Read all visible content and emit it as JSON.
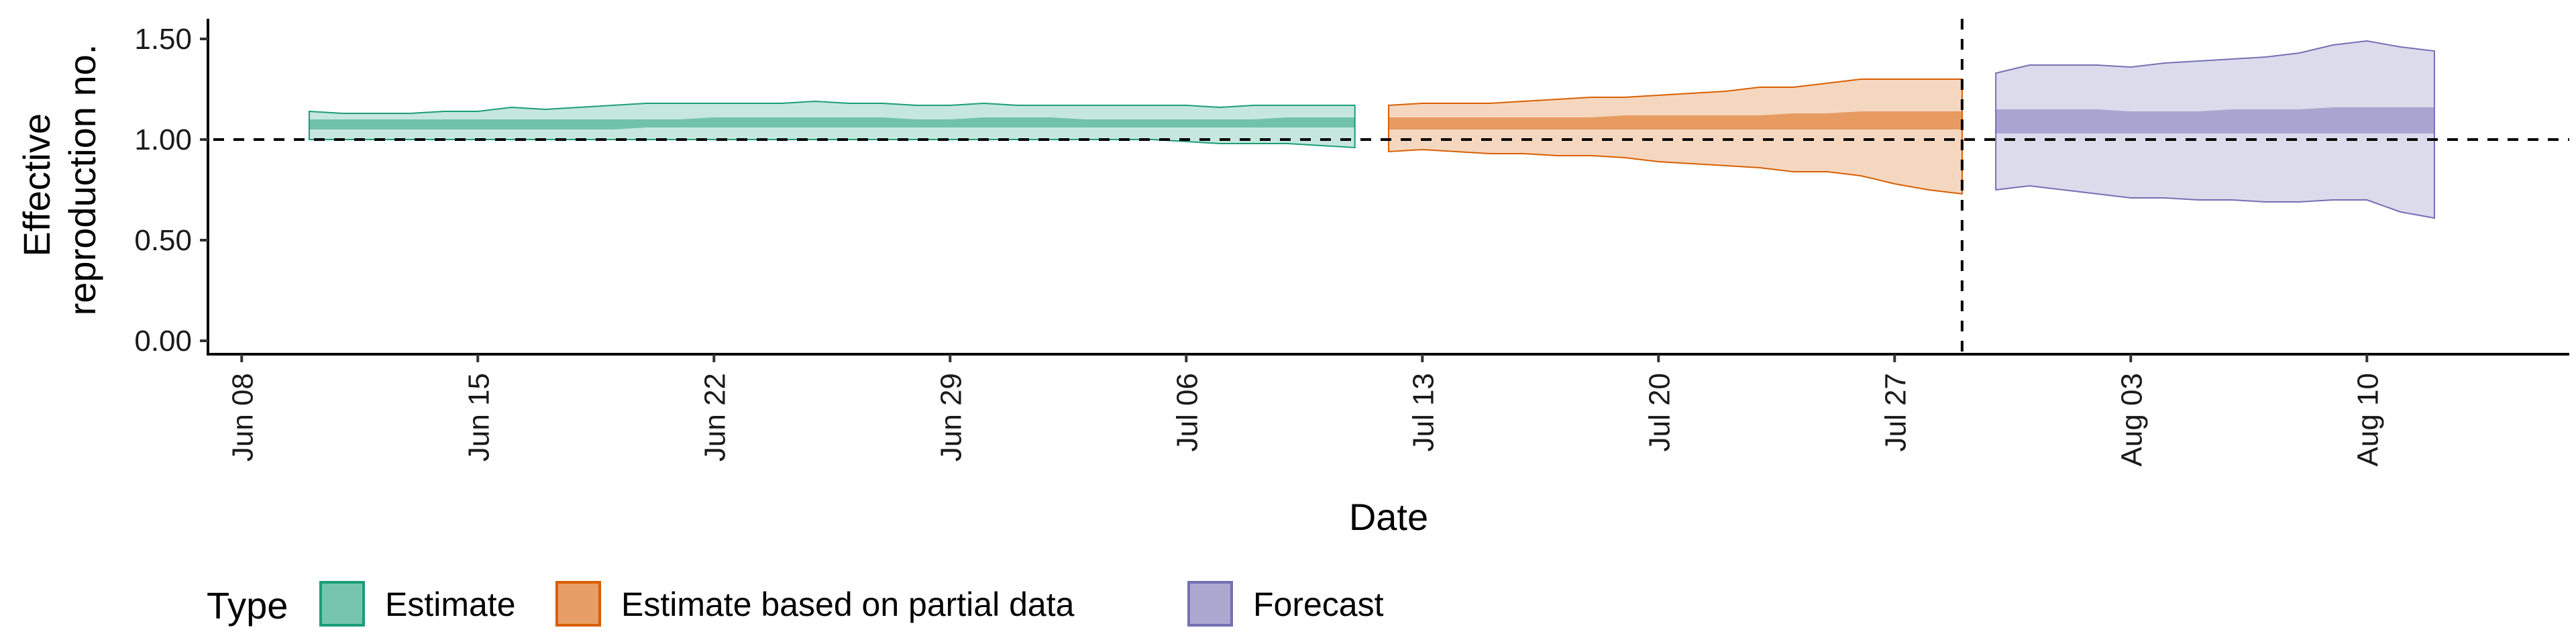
{
  "chart_data": {
    "type": "area",
    "title": "",
    "xlabel": "Date",
    "ylabel_lines": [
      "Effective",
      "reproduction no."
    ],
    "ylim": [
      0,
      1.6
    ],
    "yticks": [
      {
        "value": 0.0,
        "label": "0.00"
      },
      {
        "value": 0.5,
        "label": "0.50"
      },
      {
        "value": 1.0,
        "label": "1.00"
      },
      {
        "value": 1.5,
        "label": "1.50"
      }
    ],
    "xlim": [
      "2020-06-07",
      "2020-08-16"
    ],
    "xticks": [
      {
        "date": "2020-06-08",
        "label": "Jun 08"
      },
      {
        "date": "2020-06-15",
        "label": "Jun 15"
      },
      {
        "date": "2020-06-22",
        "label": "Jun 22"
      },
      {
        "date": "2020-06-29",
        "label": "Jun 29"
      },
      {
        "date": "2020-07-06",
        "label": "Jul 06"
      },
      {
        "date": "2020-07-13",
        "label": "Jul 13"
      },
      {
        "date": "2020-07-20",
        "label": "Jul 20"
      },
      {
        "date": "2020-07-27",
        "label": "Jul 27"
      },
      {
        "date": "2020-08-03",
        "label": "Aug 03"
      },
      {
        "date": "2020-08-10",
        "label": "Aug 10"
      }
    ],
    "reference_line_y": 1.0,
    "reference_line_x": "2020-07-29",
    "grid": false,
    "legend": {
      "title": "Type",
      "position": "bottom-left",
      "entries": [
        "Estimate",
        "Estimate based on partial data",
        "Forecast"
      ]
    },
    "series": [
      {
        "name": "Estimate",
        "fill": "#1b9e77",
        "x": [
          "2020-06-10",
          "2020-06-11",
          "2020-06-12",
          "2020-06-13",
          "2020-06-14",
          "2020-06-15",
          "2020-06-16",
          "2020-06-17",
          "2020-06-18",
          "2020-06-19",
          "2020-06-20",
          "2020-06-21",
          "2020-06-22",
          "2020-06-23",
          "2020-06-24",
          "2020-06-25",
          "2020-06-26",
          "2020-06-27",
          "2020-06-28",
          "2020-06-29",
          "2020-06-30",
          "2020-07-01",
          "2020-07-02",
          "2020-07-03",
          "2020-07-04",
          "2020-07-05",
          "2020-07-06",
          "2020-07-07",
          "2020-07-08",
          "2020-07-09",
          "2020-07-10",
          "2020-07-11"
        ],
        "upper90": [
          1.14,
          1.13,
          1.13,
          1.13,
          1.14,
          1.14,
          1.16,
          1.15,
          1.16,
          1.17,
          1.18,
          1.18,
          1.18,
          1.18,
          1.18,
          1.19,
          1.18,
          1.18,
          1.17,
          1.17,
          1.18,
          1.17,
          1.17,
          1.17,
          1.17,
          1.17,
          1.17,
          1.16,
          1.17,
          1.17,
          1.17,
          1.17
        ],
        "upper50": [
          1.1,
          1.1,
          1.1,
          1.1,
          1.1,
          1.1,
          1.1,
          1.1,
          1.1,
          1.1,
          1.1,
          1.1,
          1.11,
          1.11,
          1.11,
          1.11,
          1.11,
          1.11,
          1.1,
          1.1,
          1.11,
          1.11,
          1.11,
          1.1,
          1.1,
          1.1,
          1.1,
          1.1,
          1.1,
          1.11,
          1.11,
          1.11
        ],
        "lower50": [
          1.05,
          1.05,
          1.05,
          1.05,
          1.05,
          1.05,
          1.05,
          1.05,
          1.05,
          1.05,
          1.06,
          1.06,
          1.06,
          1.06,
          1.06,
          1.06,
          1.06,
          1.06,
          1.06,
          1.06,
          1.06,
          1.06,
          1.06,
          1.06,
          1.06,
          1.06,
          1.06,
          1.06,
          1.06,
          1.06,
          1.06,
          1.06
        ],
        "lower90": [
          1.0,
          1.0,
          1.0,
          1.0,
          1.0,
          1.0,
          1.0,
          1.0,
          1.0,
          1.0,
          1.0,
          1.0,
          1.0,
          1.0,
          1.0,
          1.0,
          1.0,
          1.0,
          1.0,
          1.0,
          1.0,
          1.0,
          1.0,
          1.0,
          1.0,
          1.0,
          0.99,
          0.98,
          0.98,
          0.98,
          0.97,
          0.96
        ]
      },
      {
        "name": "Estimate based on partial data",
        "fill": "#d95f02",
        "x": [
          "2020-07-12",
          "2020-07-13",
          "2020-07-14",
          "2020-07-15",
          "2020-07-16",
          "2020-07-17",
          "2020-07-18",
          "2020-07-19",
          "2020-07-20",
          "2020-07-21",
          "2020-07-22",
          "2020-07-23",
          "2020-07-24",
          "2020-07-25",
          "2020-07-26",
          "2020-07-27",
          "2020-07-28",
          "2020-07-29"
        ],
        "upper90": [
          1.17,
          1.18,
          1.18,
          1.18,
          1.19,
          1.2,
          1.21,
          1.21,
          1.22,
          1.23,
          1.24,
          1.26,
          1.26,
          1.28,
          1.3,
          1.3,
          1.3,
          1.3
        ],
        "upper50": [
          1.11,
          1.11,
          1.11,
          1.11,
          1.11,
          1.11,
          1.11,
          1.12,
          1.12,
          1.12,
          1.12,
          1.12,
          1.13,
          1.13,
          1.14,
          1.14,
          1.14,
          1.14
        ],
        "lower50": [
          1.05,
          1.05,
          1.05,
          1.05,
          1.05,
          1.05,
          1.05,
          1.05,
          1.05,
          1.05,
          1.05,
          1.05,
          1.05,
          1.05,
          1.05,
          1.05,
          1.05,
          1.05
        ],
        "lower90": [
          0.94,
          0.95,
          0.94,
          0.93,
          0.93,
          0.92,
          0.92,
          0.91,
          0.89,
          0.88,
          0.87,
          0.86,
          0.84,
          0.84,
          0.82,
          0.78,
          0.75,
          0.73
        ]
      },
      {
        "name": "Forecast",
        "fill": "#7570b3",
        "x": [
          "2020-07-30",
          "2020-07-31",
          "2020-08-01",
          "2020-08-02",
          "2020-08-03",
          "2020-08-04",
          "2020-08-05",
          "2020-08-06",
          "2020-08-07",
          "2020-08-08",
          "2020-08-09",
          "2020-08-10",
          "2020-08-11",
          "2020-08-12"
        ],
        "upper90": [
          1.33,
          1.37,
          1.37,
          1.37,
          1.36,
          1.38,
          1.39,
          1.4,
          1.41,
          1.43,
          1.47,
          1.49,
          1.46,
          1.44
        ],
        "upper50": [
          1.15,
          1.15,
          1.15,
          1.15,
          1.14,
          1.14,
          1.14,
          1.15,
          1.15,
          1.15,
          1.16,
          1.16,
          1.16,
          1.16
        ],
        "lower50": [
          1.03,
          1.03,
          1.03,
          1.03,
          1.03,
          1.03,
          1.03,
          1.03,
          1.03,
          1.03,
          1.03,
          1.03,
          1.03,
          1.03
        ],
        "lower90": [
          0.75,
          0.77,
          0.75,
          0.73,
          0.71,
          0.71,
          0.7,
          0.7,
          0.69,
          0.69,
          0.7,
          0.7,
          0.64,
          0.61
        ]
      }
    ]
  }
}
